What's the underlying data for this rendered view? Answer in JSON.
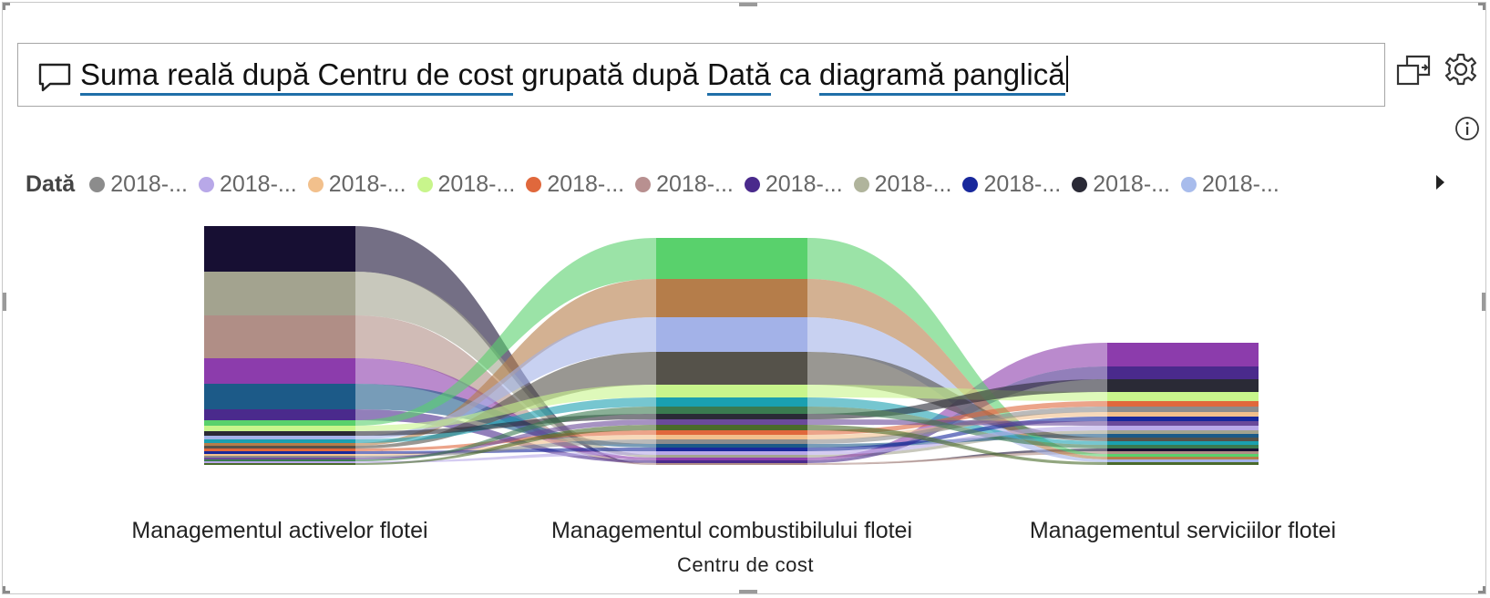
{
  "qa": {
    "parts": [
      {
        "text": "Suma reală după Centru de cost",
        "underline": true
      },
      {
        "text": " grupată după ",
        "underline": false
      },
      {
        "text": "Dată",
        "underline": true
      },
      {
        "text": " ca ",
        "underline": false
      },
      {
        "text": "diagramă panglică",
        "underline": true
      }
    ]
  },
  "toolbar": {
    "convert_icon": "turn-into-visual-icon",
    "settings_icon": "gear-icon",
    "info_icon": "info-icon"
  },
  "legend": {
    "title": "Dată",
    "items": [
      {
        "label": "2018-...",
        "color": "#8c8c8c"
      },
      {
        "label": "2018-...",
        "color": "#b8a8e8"
      },
      {
        "label": "2018-...",
        "color": "#f2c08c"
      },
      {
        "label": "2018-...",
        "color": "#c8f58c"
      },
      {
        "label": "2018-...",
        "color": "#e0683c"
      },
      {
        "label": "2018-...",
        "color": "#b89090"
      },
      {
        "label": "2018-...",
        "color": "#4a2a8c"
      },
      {
        "label": "2018-...",
        "color": "#b0b49c"
      },
      {
        "label": "2018-...",
        "color": "#18289c"
      },
      {
        "label": "2018-...",
        "color": "#2a2a36"
      },
      {
        "label": "2018-...",
        "color": "#a8bcec"
      }
    ],
    "more_icon": "chevron-right-icon"
  },
  "chart_data": {
    "type": "ribbon",
    "categories": [
      "Managementul activelor flotei",
      "Managementul combustibilului flotei",
      "Managementul serviciilor flotei"
    ],
    "xlabel": "Centru de cost",
    "series": [
      {
        "color": "#170f33",
        "values": [
          50,
          0,
          3
        ]
      },
      {
        "color": "#a3a38f",
        "values": [
          48,
          3,
          4
        ]
      },
      {
        "color": "#b08e86",
        "values": [
          47,
          2,
          3
        ]
      },
      {
        "color": "#8c3cac",
        "values": [
          28,
          3,
          26
        ]
      },
      {
        "color": "#1c5a88",
        "values": [
          28,
          4,
          4
        ]
      },
      {
        "color": "#4a2a8c",
        "values": [
          12,
          3,
          14
        ]
      },
      {
        "color": "#59d16c",
        "values": [
          6,
          45,
          3
        ]
      },
      {
        "color": "#b57d4a",
        "values": [
          3,
          42,
          3
        ]
      },
      {
        "color": "#a3b2e8",
        "values": [
          4,
          38,
          3
        ]
      },
      {
        "color": "#55524a",
        "values": [
          3,
          36,
          4
        ]
      },
      {
        "color": "#c8f58c",
        "values": [
          6,
          14,
          10
        ]
      },
      {
        "color": "#1aa0b0",
        "values": [
          4,
          10,
          4
        ]
      },
      {
        "color": "#2a2a36",
        "values": [
          5,
          6,
          14
        ]
      },
      {
        "color": "#e0683c",
        "values": [
          3,
          5,
          6
        ]
      },
      {
        "color": "#f2c08c",
        "values": [
          2,
          5,
          5
        ]
      },
      {
        "color": "#18289c",
        "values": [
          3,
          4,
          5
        ]
      },
      {
        "color": "#8c8c8c",
        "values": [
          2,
          5,
          6
        ]
      },
      {
        "color": "#6a4a9a",
        "values": [
          2,
          6,
          5
        ]
      },
      {
        "color": "#3a7a50",
        "values": [
          2,
          8,
          4
        ]
      },
      {
        "color": "#b8a8e8",
        "values": [
          2,
          4,
          5
        ]
      },
      {
        "color": "#4a6a2a",
        "values": [
          2,
          6,
          3
        ]
      }
    ]
  }
}
